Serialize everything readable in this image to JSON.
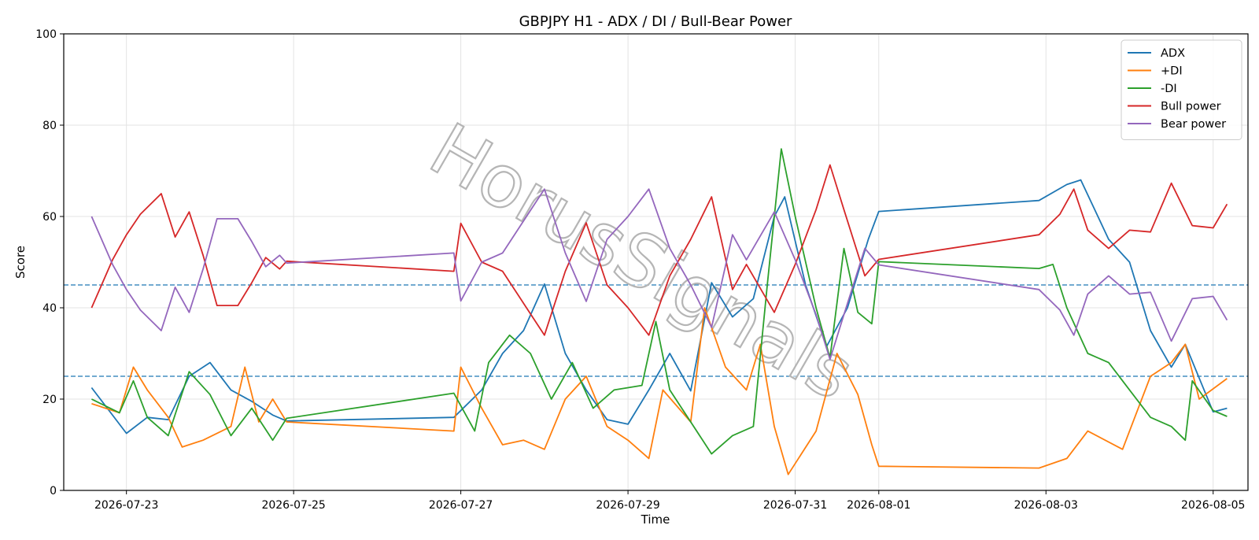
{
  "chart_data": {
    "type": "line",
    "title": "GBPJPY H1 - ADX / DI / Bull-Bear Power",
    "xlabel": "Time",
    "ylabel": "Score",
    "ylim": [
      0,
      100
    ],
    "yticks": [
      0,
      20,
      40,
      60,
      80,
      100
    ],
    "xlim": [
      "2026-07-22 06:00",
      "2026-08-05 10:00"
    ],
    "xticks": [
      "2026-07-23",
      "2026-07-25",
      "2026-07-27",
      "2026-07-29",
      "2026-07-31",
      "2026-08-01",
      "2026-08-03",
      "2026-08-05"
    ],
    "grid": true,
    "legend_position": "top-right",
    "watermark": "HorusSignals",
    "reference_lines": [
      45,
      25
    ],
    "series": [
      {
        "name": "ADX",
        "color": "#1f77b4",
        "points": [
          [
            "2026-07-22 14:00",
            22.5
          ],
          [
            "2026-07-23 00:00",
            12.5
          ],
          [
            "2026-07-23 06:00",
            16
          ],
          [
            "2026-07-23 12:00",
            15.5
          ],
          [
            "2026-07-23 18:00",
            25
          ],
          [
            "2026-07-24 00:00",
            28
          ],
          [
            "2026-07-24 06:00",
            22
          ],
          [
            "2026-07-24 12:00",
            19.5
          ],
          [
            "2026-07-24 18:00",
            16.5
          ],
          [
            "2026-07-24 22:00",
            15.2
          ],
          [
            "2026-07-26 22:00",
            16
          ],
          [
            "2026-07-27 06:00",
            22
          ],
          [
            "2026-07-27 12:00",
            30
          ],
          [
            "2026-07-27 18:00",
            35
          ],
          [
            "2026-07-28 00:00",
            45.2
          ],
          [
            "2026-07-28 06:00",
            30
          ],
          [
            "2026-07-28 12:00",
            22
          ],
          [
            "2026-07-28 18:00",
            15.5
          ],
          [
            "2026-07-29 00:00",
            14.5
          ],
          [
            "2026-07-29 06:00",
            22
          ],
          [
            "2026-07-29 12:00",
            30
          ],
          [
            "2026-07-29 18:00",
            21.8
          ],
          [
            "2026-07-30 00:00",
            45.5
          ],
          [
            "2026-07-30 06:00",
            38
          ],
          [
            "2026-07-30 12:00",
            42
          ],
          [
            "2026-07-30 18:00",
            60
          ],
          [
            "2026-07-30 21:00",
            64.3
          ],
          [
            "2026-07-31 03:00",
            45
          ],
          [
            "2026-07-31 09:00",
            31.5
          ],
          [
            "2026-07-31 15:00",
            40
          ],
          [
            "2026-07-31 21:00",
            55
          ],
          [
            "2026-08-01 00:00",
            61.1
          ],
          [
            "2026-08-02 22:00",
            63.5
          ],
          [
            "2026-08-03 06:00",
            67
          ],
          [
            "2026-08-03 10:00",
            68
          ],
          [
            "2026-08-03 18:00",
            55
          ],
          [
            "2026-08-04 00:00",
            50
          ],
          [
            "2026-08-04 06:00",
            35
          ],
          [
            "2026-08-04 12:00",
            27
          ],
          [
            "2026-08-04 16:00",
            32
          ],
          [
            "2026-08-05 00:00",
            17.2
          ],
          [
            "2026-08-05 04:00",
            18
          ]
        ]
      },
      {
        "name": "+DI",
        "color": "#ff7f0e",
        "points": [
          [
            "2026-07-22 14:00",
            19
          ],
          [
            "2026-07-22 22:00",
            17
          ],
          [
            "2026-07-23 02:00",
            27
          ],
          [
            "2026-07-23 06:00",
            22
          ],
          [
            "2026-07-23 12:00",
            16
          ],
          [
            "2026-07-23 16:00",
            9.5
          ],
          [
            "2026-07-23 22:00",
            11
          ],
          [
            "2026-07-24 06:00",
            14
          ],
          [
            "2026-07-24 10:00",
            27
          ],
          [
            "2026-07-24 14:00",
            15
          ],
          [
            "2026-07-24 18:00",
            20
          ],
          [
            "2026-07-24 22:00",
            15
          ],
          [
            "2026-07-26 22:00",
            13
          ],
          [
            "2026-07-27 00:00",
            27
          ],
          [
            "2026-07-27 06:00",
            18
          ],
          [
            "2026-07-27 12:00",
            10
          ],
          [
            "2026-07-27 18:00",
            11
          ],
          [
            "2026-07-28 00:00",
            9
          ],
          [
            "2026-07-28 06:00",
            20
          ],
          [
            "2026-07-28 12:00",
            25
          ],
          [
            "2026-07-28 18:00",
            14
          ],
          [
            "2026-07-29 00:00",
            11
          ],
          [
            "2026-07-29 06:00",
            7
          ],
          [
            "2026-07-29 10:00",
            22
          ],
          [
            "2026-07-29 18:00",
            15
          ],
          [
            "2026-07-29 22:00",
            40
          ],
          [
            "2026-07-30 04:00",
            27
          ],
          [
            "2026-07-30 10:00",
            22
          ],
          [
            "2026-07-30 14:00",
            32
          ],
          [
            "2026-07-30 18:00",
            14
          ],
          [
            "2026-07-30 22:00",
            3.5
          ],
          [
            "2026-07-31 06:00",
            13
          ],
          [
            "2026-07-31 12:00",
            30
          ],
          [
            "2026-07-31 18:00",
            21
          ],
          [
            "2026-07-31 22:00",
            10
          ],
          [
            "2026-08-01 00:00",
            5.3
          ],
          [
            "2026-08-02 22:00",
            4.9
          ],
          [
            "2026-08-03 06:00",
            7
          ],
          [
            "2026-08-03 12:00",
            13
          ],
          [
            "2026-08-03 22:00",
            9
          ],
          [
            "2026-08-04 06:00",
            25
          ],
          [
            "2026-08-04 12:00",
            28
          ],
          [
            "2026-08-04 16:00",
            32
          ],
          [
            "2026-08-04 20:00",
            20
          ],
          [
            "2026-08-05 04:00",
            24.5
          ]
        ]
      },
      {
        "name": "-DI",
        "color": "#2ca02c",
        "points": [
          [
            "2026-07-22 14:00",
            20
          ],
          [
            "2026-07-22 22:00",
            17
          ],
          [
            "2026-07-23 02:00",
            24
          ],
          [
            "2026-07-23 06:00",
            16
          ],
          [
            "2026-07-23 12:00",
            12
          ],
          [
            "2026-07-23 18:00",
            26
          ],
          [
            "2026-07-24 00:00",
            21
          ],
          [
            "2026-07-24 06:00",
            12
          ],
          [
            "2026-07-24 12:00",
            18
          ],
          [
            "2026-07-24 18:00",
            11
          ],
          [
            "2026-07-24 22:00",
            15.8
          ],
          [
            "2026-07-26 22:00",
            21.3
          ],
          [
            "2026-07-27 04:00",
            13
          ],
          [
            "2026-07-27 08:00",
            28
          ],
          [
            "2026-07-27 14:00",
            34
          ],
          [
            "2026-07-27 20:00",
            30
          ],
          [
            "2026-07-28 02:00",
            20
          ],
          [
            "2026-07-28 08:00",
            28
          ],
          [
            "2026-07-28 14:00",
            18
          ],
          [
            "2026-07-28 20:00",
            22
          ],
          [
            "2026-07-29 04:00",
            23
          ],
          [
            "2026-07-29 08:00",
            37
          ],
          [
            "2026-07-29 12:00",
            22
          ],
          [
            "2026-07-29 18:00",
            15
          ],
          [
            "2026-07-30 00:00",
            8
          ],
          [
            "2026-07-30 06:00",
            12
          ],
          [
            "2026-07-30 12:00",
            14
          ],
          [
            "2026-07-30 16:00",
            45
          ],
          [
            "2026-07-30 20:00",
            74.8
          ],
          [
            "2026-07-31 00:00",
            60
          ],
          [
            "2026-07-31 06:00",
            40
          ],
          [
            "2026-07-31 10:00",
            29
          ],
          [
            "2026-07-31 14:00",
            53
          ],
          [
            "2026-07-31 18:00",
            39
          ],
          [
            "2026-07-31 22:00",
            36.5
          ],
          [
            "2026-08-01 00:00",
            50.1
          ],
          [
            "2026-08-02 22:00",
            48.6
          ],
          [
            "2026-08-03 02:00",
            49.5
          ],
          [
            "2026-08-03 06:00",
            40
          ],
          [
            "2026-08-03 12:00",
            30
          ],
          [
            "2026-08-03 18:00",
            28
          ],
          [
            "2026-08-04 00:00",
            22
          ],
          [
            "2026-08-04 06:00",
            16
          ],
          [
            "2026-08-04 12:00",
            14
          ],
          [
            "2026-08-04 16:00",
            11
          ],
          [
            "2026-08-04 18:00",
            24
          ],
          [
            "2026-08-05 00:00",
            17.5
          ],
          [
            "2026-08-05 04:00",
            16.2
          ]
        ]
      },
      {
        "name": "Bull power",
        "color": "#d62728",
        "points": [
          [
            "2026-07-22 14:00",
            40
          ],
          [
            "2026-07-22 20:00",
            50.5
          ],
          [
            "2026-07-23 00:00",
            56
          ],
          [
            "2026-07-23 04:00",
            60.5
          ],
          [
            "2026-07-23 10:00",
            65
          ],
          [
            "2026-07-23 14:00",
            55.5
          ],
          [
            "2026-07-23 18:00",
            61
          ],
          [
            "2026-07-23 22:00",
            51.5
          ],
          [
            "2026-07-24 02:00",
            40.5
          ],
          [
            "2026-07-24 08:00",
            40.5
          ],
          [
            "2026-07-24 12:00",
            45.5
          ],
          [
            "2026-07-24 16:00",
            51
          ],
          [
            "2026-07-24 20:00",
            48.5
          ],
          [
            "2026-07-24 22:00",
            50.2
          ],
          [
            "2026-07-26 22:00",
            48
          ],
          [
            "2026-07-27 00:00",
            58.5
          ],
          [
            "2026-07-27 06:00",
            50
          ],
          [
            "2026-07-27 12:00",
            48
          ],
          [
            "2026-07-27 18:00",
            41
          ],
          [
            "2026-07-28 00:00",
            34
          ],
          [
            "2026-07-28 06:00",
            48
          ],
          [
            "2026-07-28 12:00",
            58.6
          ],
          [
            "2026-07-28 18:00",
            45
          ],
          [
            "2026-07-29 00:00",
            40
          ],
          [
            "2026-07-29 06:00",
            34
          ],
          [
            "2026-07-29 12:00",
            47
          ],
          [
            "2026-07-29 18:00",
            55
          ],
          [
            "2026-07-30 00:00",
            64.3
          ],
          [
            "2026-07-30 06:00",
            44
          ],
          [
            "2026-07-30 10:00",
            49.5
          ],
          [
            "2026-07-30 18:00",
            39
          ],
          [
            "2026-07-31 00:00",
            49.5
          ],
          [
            "2026-07-31 06:00",
            61.5
          ],
          [
            "2026-07-31 10:00",
            71.3
          ],
          [
            "2026-07-31 14:00",
            61.5
          ],
          [
            "2026-07-31 20:00",
            47
          ],
          [
            "2026-08-01 00:00",
            50.6
          ],
          [
            "2026-08-02 22:00",
            56
          ],
          [
            "2026-08-03 04:00",
            60.5
          ],
          [
            "2026-08-03 08:00",
            66
          ],
          [
            "2026-08-03 12:00",
            57
          ],
          [
            "2026-08-03 18:00",
            53
          ],
          [
            "2026-08-04 00:00",
            57
          ],
          [
            "2026-08-04 06:00",
            56.6
          ],
          [
            "2026-08-04 12:00",
            67.3
          ],
          [
            "2026-08-04 18:00",
            58
          ],
          [
            "2026-08-05 00:00",
            57.5
          ],
          [
            "2026-08-05 04:00",
            62.7
          ]
        ]
      },
      {
        "name": "Bear power",
        "color": "#9467bd",
        "points": [
          [
            "2026-07-22 14:00",
            60
          ],
          [
            "2026-07-22 20:00",
            49.5
          ],
          [
            "2026-07-23 00:00",
            44
          ],
          [
            "2026-07-23 04:00",
            39.5
          ],
          [
            "2026-07-23 10:00",
            35
          ],
          [
            "2026-07-23 14:00",
            44.5
          ],
          [
            "2026-07-23 18:00",
            39
          ],
          [
            "2026-07-23 22:00",
            48.5
          ],
          [
            "2026-07-24 02:00",
            59.5
          ],
          [
            "2026-07-24 08:00",
            59.5
          ],
          [
            "2026-07-24 12:00",
            54.5
          ],
          [
            "2026-07-24 16:00",
            49
          ],
          [
            "2026-07-24 20:00",
            51.5
          ],
          [
            "2026-07-24 22:00",
            49.8
          ],
          [
            "2026-07-26 22:00",
            52
          ],
          [
            "2026-07-27 00:00",
            41.5
          ],
          [
            "2026-07-27 06:00",
            50
          ],
          [
            "2026-07-27 12:00",
            52
          ],
          [
            "2026-07-27 18:00",
            59
          ],
          [
            "2026-07-28 00:00",
            66
          ],
          [
            "2026-07-28 06:00",
            52
          ],
          [
            "2026-07-28 12:00",
            41.4
          ],
          [
            "2026-07-28 18:00",
            55
          ],
          [
            "2026-07-29 00:00",
            60
          ],
          [
            "2026-07-29 06:00",
            66
          ],
          [
            "2026-07-29 12:00",
            53
          ],
          [
            "2026-07-29 18:00",
            45
          ],
          [
            "2026-07-30 00:00",
            35.7
          ],
          [
            "2026-07-30 06:00",
            56
          ],
          [
            "2026-07-30 10:00",
            50.5
          ],
          [
            "2026-07-30 18:00",
            61
          ],
          [
            "2026-07-31 00:00",
            50.5
          ],
          [
            "2026-07-31 06:00",
            38.5
          ],
          [
            "2026-07-31 10:00",
            28.7
          ],
          [
            "2026-07-31 14:00",
            38.5
          ],
          [
            "2026-07-31 20:00",
            53
          ],
          [
            "2026-08-01 00:00",
            49.4
          ],
          [
            "2026-08-02 22:00",
            44
          ],
          [
            "2026-08-03 04:00",
            39.5
          ],
          [
            "2026-08-03 08:00",
            34
          ],
          [
            "2026-08-03 12:00",
            43
          ],
          [
            "2026-08-03 18:00",
            47
          ],
          [
            "2026-08-04 00:00",
            43
          ],
          [
            "2026-08-04 06:00",
            43.4
          ],
          [
            "2026-08-04 12:00",
            32.7
          ],
          [
            "2026-08-04 18:00",
            42
          ],
          [
            "2026-08-05 00:00",
            42.5
          ],
          [
            "2026-08-05 04:00",
            37.3
          ]
        ]
      }
    ]
  }
}
